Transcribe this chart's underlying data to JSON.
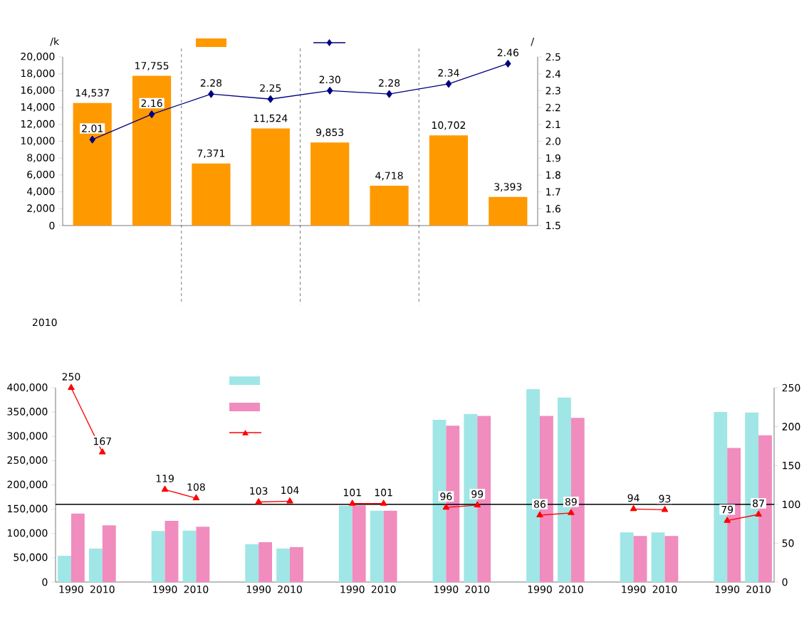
{
  "chart_data": [
    {
      "type": "bar",
      "ylabel": "/k",
      "y2label": "/",
      "categories": [
        null,
        null,
        null,
        null,
        null,
        null,
        null,
        null
      ],
      "series": [
        {
          "color": "#ff9900",
          "values": [
            14537,
            17755,
            7371,
            11524,
            9853,
            4718,
            10702,
            3393
          ],
          "value_labels": [
            "14,537",
            "17,755",
            "7,371",
            "11,524",
            "9,853",
            "4,718",
            "10,702",
            "3,393"
          ]
        },
        {
          "type": "line",
          "axis": "y2",
          "color": "#000080",
          "marker": "diamond",
          "values": [
            2.01,
            2.16,
            2.28,
            2.25,
            2.3,
            2.28,
            2.34,
            2.46
          ],
          "value_labels": [
            "2.01",
            "2.16",
            "2.28",
            "2.25",
            "2.30",
            "2.28",
            "2.34",
            "2.46"
          ]
        }
      ],
      "ylim": [
        0,
        20000
      ],
      "yticks": [
        0,
        {
          "value": 2000,
          "label": "2,000"
        },
        {
          "value": 4000,
          "label": "4,000"
        },
        {
          "value": 6000,
          "label": "6,000"
        },
        {
          "value": 8000,
          "label": "8,000"
        },
        {
          "value": 10000,
          "label": "10,000"
        },
        {
          "value": 12000,
          "label": "12,000"
        },
        {
          "value": 14000,
          "label": "14,000"
        },
        {
          "value": 16000,
          "label": "16,000"
        },
        {
          "value": 18000,
          "label": "18,000"
        },
        {
          "value": 20000,
          "label": "20,000"
        }
      ],
      "y2lim": [
        1.5,
        2.5
      ],
      "y2ticks": [
        1.5,
        1.6,
        1.7,
        1.8,
        1.9,
        {
          "value": 2,
          "label": "2.0"
        },
        2.1,
        2.2,
        2.3,
        2.4,
        2.5
      ],
      "tick_labels": "y"
    },
    {
      "type": "bar",
      "title": "2010",
      "categories": [
        "1990",
        "2010",
        null,
        "1990",
        "2010",
        null,
        "1990",
        "2010",
        null,
        "1990",
        "2010",
        null,
        "1990",
        "2010",
        null,
        "1990",
        "2010",
        null,
        "1990",
        "2010",
        null,
        "1990",
        "2010"
      ],
      "series": [
        {
          "color": "#a0e6e6",
          "values": [
            54000,
            69000,
            null,
            105000,
            106000,
            null,
            78000,
            69000,
            null,
            157000,
            147000,
            null,
            334000,
            346000,
            null,
            397000,
            380000,
            null,
            102000,
            102000,
            null,
            350000,
            349000
          ]
        },
        {
          "color": "#f08cbe",
          "values": [
            141000,
            117000,
            null,
            126000,
            114000,
            null,
            82000,
            72000,
            null,
            158000,
            147000,
            null,
            322000,
            342000,
            null,
            342000,
            338000,
            null,
            95000,
            95000,
            null,
            276000,
            302000
          ]
        },
        {
          "type": "line",
          "axis": "y2",
          "color": "#ff0000",
          "marker": "triangle",
          "values": [
            250,
            167,
            null,
            119,
            108,
            null,
            103,
            104,
            null,
            101,
            101,
            null,
            96,
            99,
            null,
            86,
            89,
            null,
            94,
            93,
            null,
            79,
            87
          ],
          "value_labels": [
            "250",
            "167",
            null,
            "119",
            "108",
            null,
            "103",
            "104",
            null,
            "101",
            "101",
            null,
            "96",
            "99",
            null,
            "86",
            "89",
            null,
            "94",
            "93",
            null,
            "79",
            "87"
          ]
        }
      ],
      "ylim": [
        0,
        400000
      ],
      "yticks": [
        0,
        {
          "value": 50000,
          "label": "50,000"
        },
        {
          "value": 100000,
          "label": "100,000"
        },
        {
          "value": 150000,
          "label": "150,000"
        },
        {
          "value": 200000,
          "label": "200,000"
        },
        {
          "value": 250000,
          "label": "250,000"
        },
        {
          "value": 300000,
          "label": "300,000"
        },
        {
          "value": 350000,
          "label": "350,000"
        },
        {
          "value": 400000,
          "label": "400,000"
        }
      ],
      "y2lim": [
        0,
        250
      ],
      "y2ticks": [
        0,
        50,
        100,
        150,
        200,
        250
      ],
      "ref_lines": [
        {
          "axis": "y2",
          "value": 100,
          "color": "#000000",
          "line_style": "solid"
        }
      ]
    }
  ]
}
